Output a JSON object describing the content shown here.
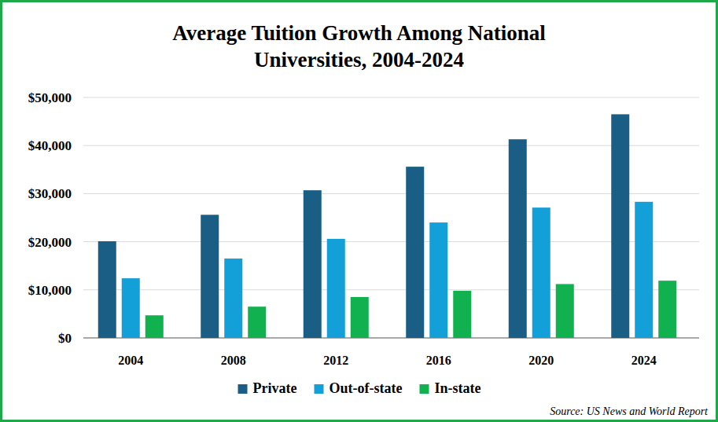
{
  "chart_data": {
    "type": "bar",
    "title": "Average Tuition Growth Among National Universities, 2004-2024",
    "categories": [
      "2004",
      "2008",
      "2012",
      "2016",
      "2020",
      "2024"
    ],
    "series": [
      {
        "name": "Private",
        "color": "#1a5e85",
        "values": [
          20100,
          25600,
          30700,
          35600,
          41300,
          46500
        ]
      },
      {
        "name": "Out-of-state",
        "color": "#139fd7",
        "values": [
          12400,
          16500,
          20600,
          24000,
          27100,
          28300
        ]
      },
      {
        "name": "In-state",
        "color": "#11b14f",
        "values": [
          4700,
          6500,
          8500,
          9800,
          11200,
          11900
        ]
      }
    ],
    "ylim": [
      0,
      50000
    ],
    "yticks": [
      {
        "value": 0,
        "label": "$0"
      },
      {
        "value": 10000,
        "label": "$10,000"
      },
      {
        "value": 20000,
        "label": "$20,000"
      },
      {
        "value": 30000,
        "label": "$30,000"
      },
      {
        "value": 40000,
        "label": "$40,000"
      },
      {
        "value": 50000,
        "label": "$50,000"
      }
    ],
    "grid": true,
    "legend": "bottom",
    "annotations": [
      "Source: US News and World Report"
    ]
  }
}
